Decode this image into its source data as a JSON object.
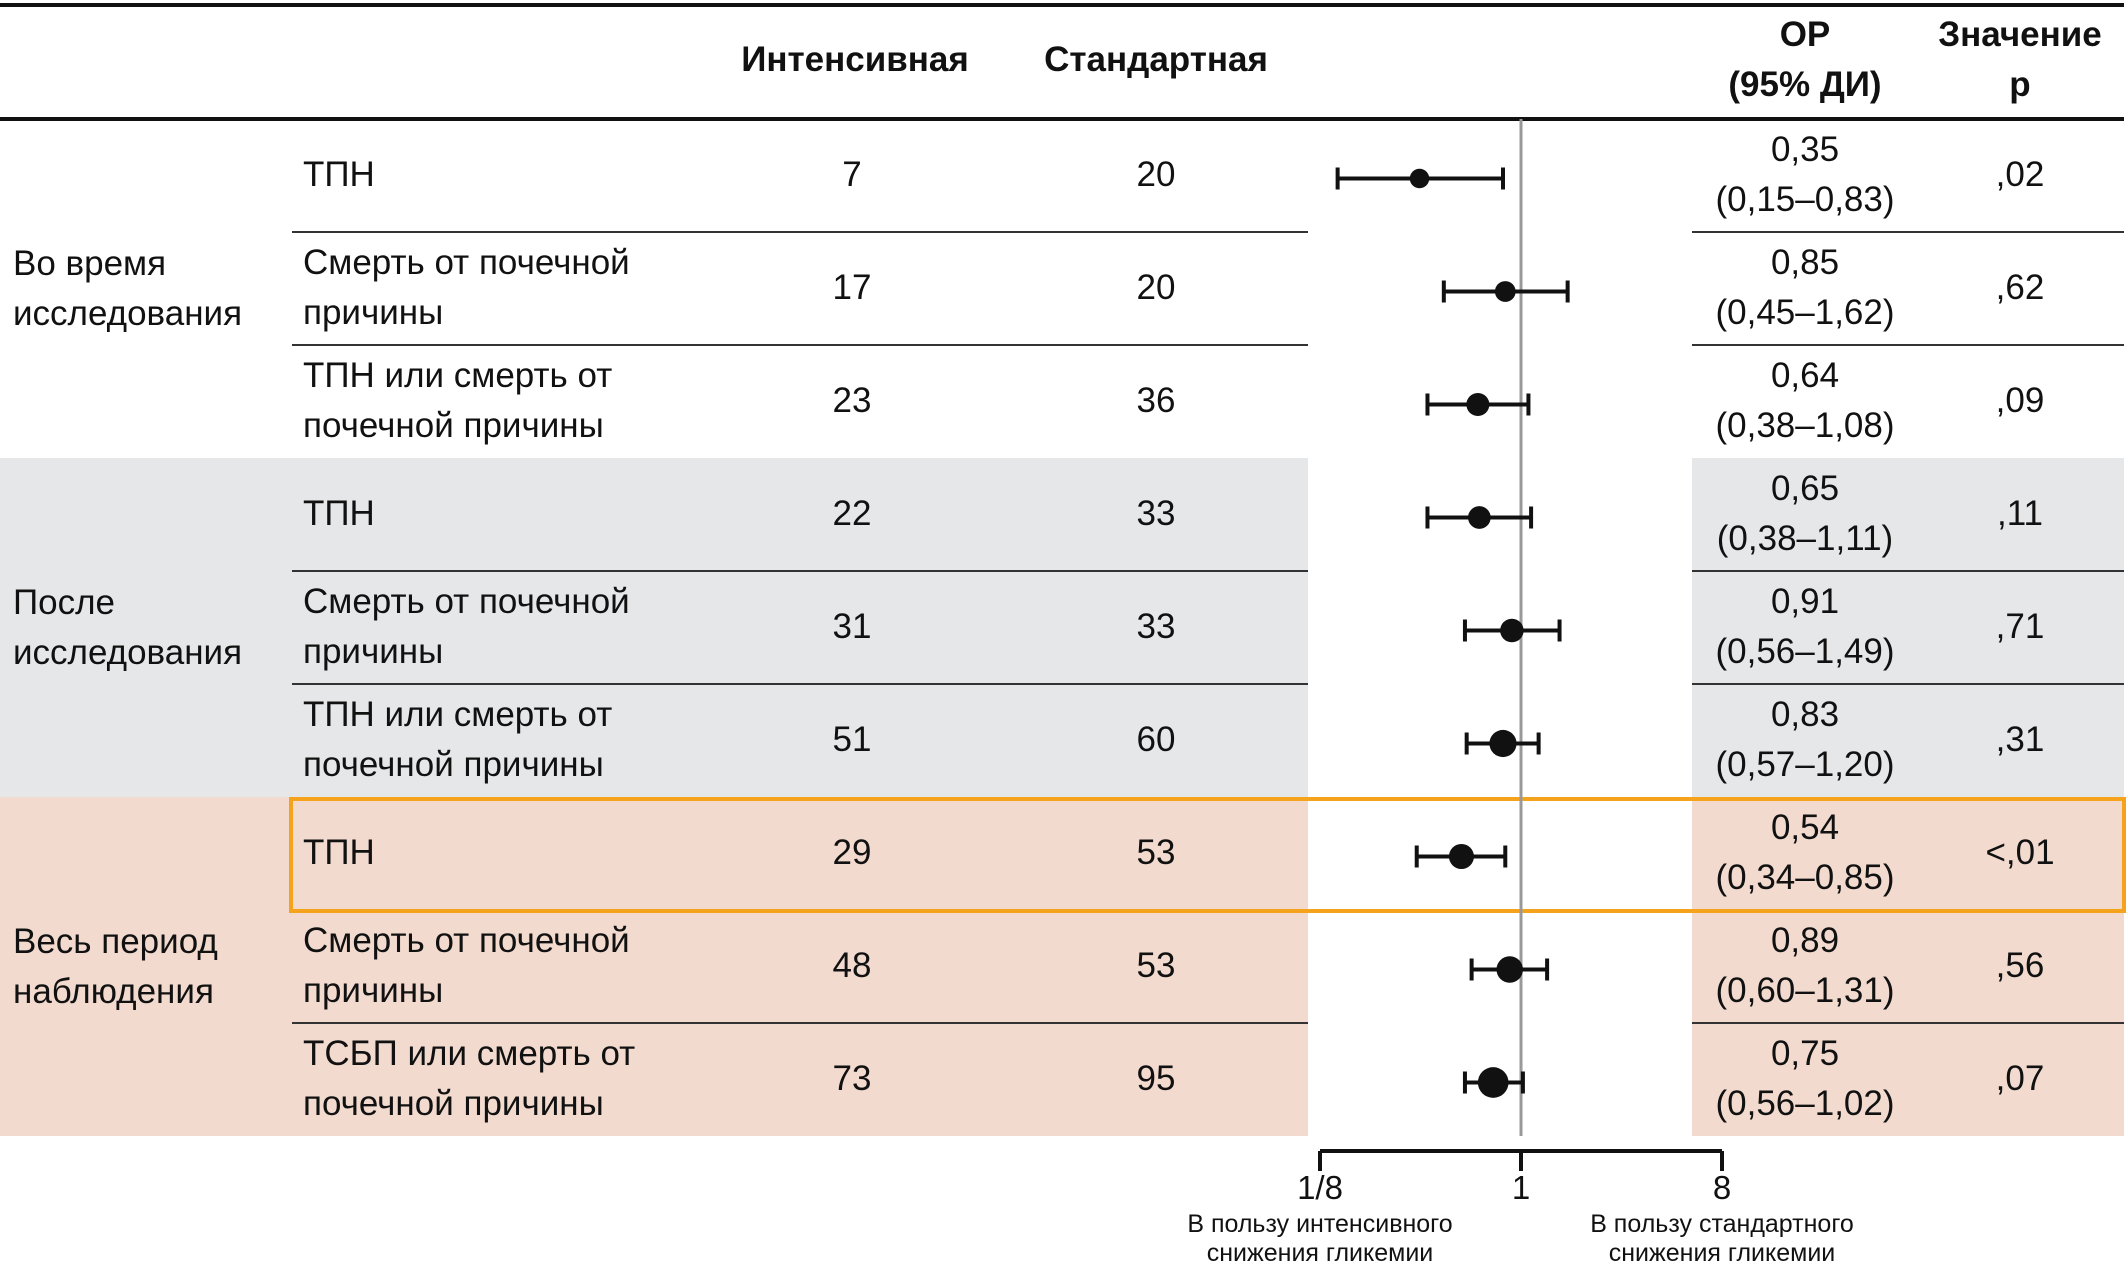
{
  "header": {
    "intensive": "Интенсивная",
    "standard": "Стандартная",
    "or_line1": "ОР",
    "or_line2": "(95% ДИ)",
    "p_line1": "Значение",
    "p_line2": "р"
  },
  "groups": [
    {
      "label_line1": "Во время",
      "label_line2": "исследования",
      "background": "#ffffff"
    },
    {
      "label_line1": "После",
      "label_line2": "исследования",
      "background": "#e6e7e8"
    },
    {
      "label_line1": "Весь период",
      "label_line2": "наблюдения",
      "background": "#f2dacf"
    }
  ],
  "highlight_color": "#f5a31d",
  "chart_data": {
    "type": "forest",
    "x_scale": "log2",
    "xlim": [
      0.125,
      8
    ],
    "reference_value": 1,
    "ticks": [
      "1/8",
      "1",
      "8"
    ],
    "tick_values": [
      0.125,
      1,
      8
    ],
    "left_label_line1": "В пользу интенсивного",
    "left_label_line2": "снижения гликемии",
    "right_label_line1": "В пользу стандартного",
    "right_label_line2": "снижения гликемии",
    "rows": [
      {
        "group": 0,
        "outcome_line1": "ТПН",
        "outcome_line2": "",
        "intensive": "7",
        "standard": "20",
        "or": 0.35,
        "lo": 0.15,
        "hi": 0.83,
        "or_text": "0,35",
        "ci_text": "(0,15–0,83)",
        "p": ",02",
        "highlight": false
      },
      {
        "group": 0,
        "outcome_line1": "Смерть от почечной",
        "outcome_line2": "причины",
        "intensive": "17",
        "standard": "20",
        "or": 0.85,
        "lo": 0.45,
        "hi": 1.62,
        "or_text": "0,85",
        "ci_text": "(0,45–1,62)",
        "p": ",62",
        "highlight": false
      },
      {
        "group": 0,
        "outcome_line1": "ТПН или смерть от",
        "outcome_line2": "почечной причины",
        "intensive": "23",
        "standard": "36",
        "or": 0.64,
        "lo": 0.38,
        "hi": 1.08,
        "or_text": "0,64",
        "ci_text": "(0,38–1,08)",
        "p": ",09",
        "highlight": false
      },
      {
        "group": 1,
        "outcome_line1": "ТПН",
        "outcome_line2": "",
        "intensive": "22",
        "standard": "33",
        "or": 0.65,
        "lo": 0.38,
        "hi": 1.11,
        "or_text": "0,65",
        "ci_text": "(0,38–1,11)",
        "p": ",11",
        "highlight": false
      },
      {
        "group": 1,
        "outcome_line1": "Смерть от почечной",
        "outcome_line2": "причины",
        "intensive": "31",
        "standard": "33",
        "or": 0.91,
        "lo": 0.56,
        "hi": 1.49,
        "or_text": "0,91",
        "ci_text": "(0,56–1,49)",
        "p": ",71",
        "highlight": false
      },
      {
        "group": 1,
        "outcome_line1": "ТПН или смерть от",
        "outcome_line2": "почечной причины",
        "intensive": "51",
        "standard": "60",
        "or": 0.83,
        "lo": 0.57,
        "hi": 1.2,
        "or_text": "0,83",
        "ci_text": "(0,57–1,20)",
        "p": ",31",
        "highlight": false
      },
      {
        "group": 2,
        "outcome_line1": "ТПН",
        "outcome_line2": "",
        "intensive": "29",
        "standard": "53",
        "or": 0.54,
        "lo": 0.34,
        "hi": 0.85,
        "or_text": "0,54",
        "ci_text": "(0,34–0,85)",
        "p": "<,01",
        "highlight": true
      },
      {
        "group": 2,
        "outcome_line1": "Смерть от почечной",
        "outcome_line2": "причины",
        "intensive": "48",
        "standard": "53",
        "or": 0.89,
        "lo": 0.6,
        "hi": 1.31,
        "or_text": "0,89",
        "ci_text": "(0,60–1,31)",
        "p": ",56",
        "highlight": false
      },
      {
        "group": 2,
        "outcome_line1": "ТСБП или смерть от",
        "outcome_line2": "почечной причины",
        "intensive": "73",
        "standard": "95",
        "or": 0.75,
        "lo": 0.56,
        "hi": 1.02,
        "or_text": "0,75",
        "ci_text": "(0,56–1,02)",
        "p": ",07",
        "highlight": false
      }
    ]
  }
}
